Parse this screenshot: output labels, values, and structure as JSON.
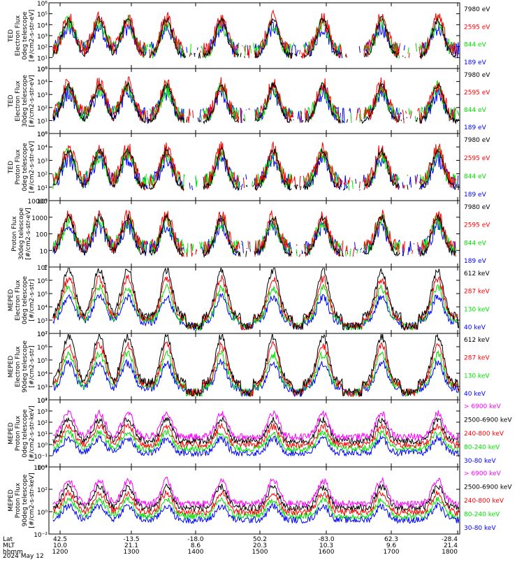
{
  "colors": {
    "black": "#000000",
    "red": "#ff0000",
    "green": "#00e000",
    "blue": "#0000ff",
    "magenta": "#ff00ff"
  },
  "chart_data": [
    {
      "type": "line",
      "panel": 1,
      "ylabel": [
        "TED",
        "Electron Flux",
        "0deg telescope",
        "[#/cm2-s-str-eV]"
      ],
      "ylim": [
        1,
        1000000
      ],
      "yscale": "log",
      "ytick_labels": [
        "10⁰",
        "10¹",
        "10²",
        "10³",
        "10⁴",
        "10⁵",
        "10⁶"
      ],
      "series": [
        {
          "name": "7980 eV",
          "color": "black"
        },
        {
          "name": "2595 eV",
          "color": "red"
        },
        {
          "name": "844 eV",
          "color": "green"
        },
        {
          "name": "189 eV",
          "color": "blue"
        }
      ]
    },
    {
      "type": "line",
      "panel": 2,
      "ylabel": [
        "TED",
        "Electron Flux",
        "30deg telescope",
        "[#/cm2-s-str-eV]"
      ],
      "ylim": [
        1,
        100000
      ],
      "yscale": "log",
      "ytick_labels": [
        "10⁰",
        "10¹",
        "10²",
        "10³",
        "10⁴",
        "10⁵"
      ],
      "series": [
        {
          "name": "7980 eV",
          "color": "black"
        },
        {
          "name": "2595 eV",
          "color": "red"
        },
        {
          "name": "844 eV",
          "color": "green"
        },
        {
          "name": "189 eV",
          "color": "blue"
        }
      ]
    },
    {
      "type": "line",
      "panel": 3,
      "ylabel": [
        "TED",
        "Proton Flux",
        "0deg telescope",
        "[#/cm2-s-str-eV]"
      ],
      "ylim": [
        1,
        100000
      ],
      "yscale": "log",
      "ytick_labels": [
        "10⁰",
        "10¹",
        "10²",
        "10³",
        "10⁴",
        "10⁵"
      ],
      "series": [
        {
          "name": "7980 eV",
          "color": "black"
        },
        {
          "name": "2595 eV",
          "color": "red"
        },
        {
          "name": "844 eV",
          "color": "green"
        },
        {
          "name": "189 eV",
          "color": "blue"
        }
      ]
    },
    {
      "type": "line",
      "panel": 4,
      "ylabel": [
        "Proton Flux",
        "30deg telescope",
        "[#/cm2-s-str-eV]"
      ],
      "ylim": [
        1,
        10000
      ],
      "yscale": "log",
      "ytick_labels": [
        "1",
        "10",
        "100",
        "1000",
        "10000"
      ],
      "series": [
        {
          "name": "7980 eV",
          "color": "black"
        },
        {
          "name": "2595 eV",
          "color": "red"
        },
        {
          "name": "844 eV",
          "color": "green"
        },
        {
          "name": "189 eV",
          "color": "blue"
        }
      ]
    },
    {
      "type": "line",
      "panel": 5,
      "ylabel": [
        "MEPED",
        "Electron Flux",
        "0deg telescope",
        "[#/cm2-s-str]"
      ],
      "ylim": [
        100,
        10000000
      ],
      "yscale": "log",
      "ytick_labels": [
        "10²",
        "10³",
        "10⁴",
        "10⁵",
        "10⁶",
        "10⁷"
      ],
      "series": [
        {
          "name": "612 keV",
          "color": "black"
        },
        {
          "name": "287 keV",
          "color": "red"
        },
        {
          "name": "130 keV",
          "color": "green"
        },
        {
          "name": "40 keV",
          "color": "blue"
        }
      ]
    },
    {
      "type": "line",
      "panel": 6,
      "ylabel": [
        "MEPED",
        "Electron Flux",
        "90deg telescope",
        "[#/cm2-s-str]"
      ],
      "ylim": [
        100,
        10000000
      ],
      "yscale": "log",
      "ytick_labels": [
        "10²",
        "10³",
        "10⁴",
        "10⁵",
        "10⁶",
        "10⁷"
      ],
      "series": [
        {
          "name": "612 keV",
          "color": "black"
        },
        {
          "name": "287 keV",
          "color": "red"
        },
        {
          "name": "130 keV",
          "color": "green"
        },
        {
          "name": "40 keV",
          "color": "blue"
        }
      ]
    },
    {
      "type": "line",
      "panel": 7,
      "ylabel": [
        "MEPED",
        "Proton Flux",
        "0deg telescope",
        "[#/cm2-s-str-keV]"
      ],
      "ylim": [
        0.01,
        10000
      ],
      "yscale": "log",
      "ytick_labels": [
        "10⁻²",
        "10⁻¹",
        "10⁰",
        "10¹",
        "10²",
        "10³",
        "10⁴"
      ],
      "series": [
        {
          "name": "> 6900 keV",
          "color": "magenta"
        },
        {
          "name": "2500-6900 keV",
          "color": "black"
        },
        {
          "name": "240-800 keV",
          "color": "red"
        },
        {
          "name": "80-240 keV",
          "color": "green"
        },
        {
          "name": "30-80 keV",
          "color": "blue"
        }
      ]
    },
    {
      "type": "line",
      "panel": 8,
      "ylabel": [
        "MEPED",
        "Proton Flux",
        "90deg telescope",
        "[#/cm2-s-str-keV]"
      ],
      "ylim": [
        0.01,
        10000
      ],
      "yscale": "log",
      "ytick_labels": [
        "10⁻²",
        "10⁰",
        "10²",
        "10⁴"
      ],
      "series": [
        {
          "name": "> 6900 keV",
          "color": "magenta"
        },
        {
          "name": "2500-6900 keV",
          "color": "black"
        },
        {
          "name": "240-800 keV",
          "color": "red"
        },
        {
          "name": "80-240 keV",
          "color": "green"
        },
        {
          "name": "30-80 keV",
          "color": "blue"
        }
      ]
    }
  ],
  "xaxis": {
    "row_labels": [
      "Lat",
      "MLT",
      "hhmm",
      "2024 May 12"
    ],
    "ticks": [
      {
        "lat": "42.5",
        "mlt": "10.0",
        "hhmm": "1200"
      },
      {
        "lat": "-13.5",
        "mlt": "21.1",
        "hhmm": "1300"
      },
      {
        "lat": "-18.0",
        "mlt": "8.6",
        "hhmm": "1400"
      },
      {
        "lat": "50.2",
        "mlt": "20.3",
        "hhmm": "1500"
      },
      {
        "lat": "-83.0",
        "mlt": "10.3",
        "hhmm": "1600"
      },
      {
        "lat": "62.3",
        "mlt": "9.6",
        "hhmm": "1700"
      },
      {
        "lat": "-28.4",
        "mlt": "21.4",
        "hhmm": "1800"
      }
    ]
  }
}
